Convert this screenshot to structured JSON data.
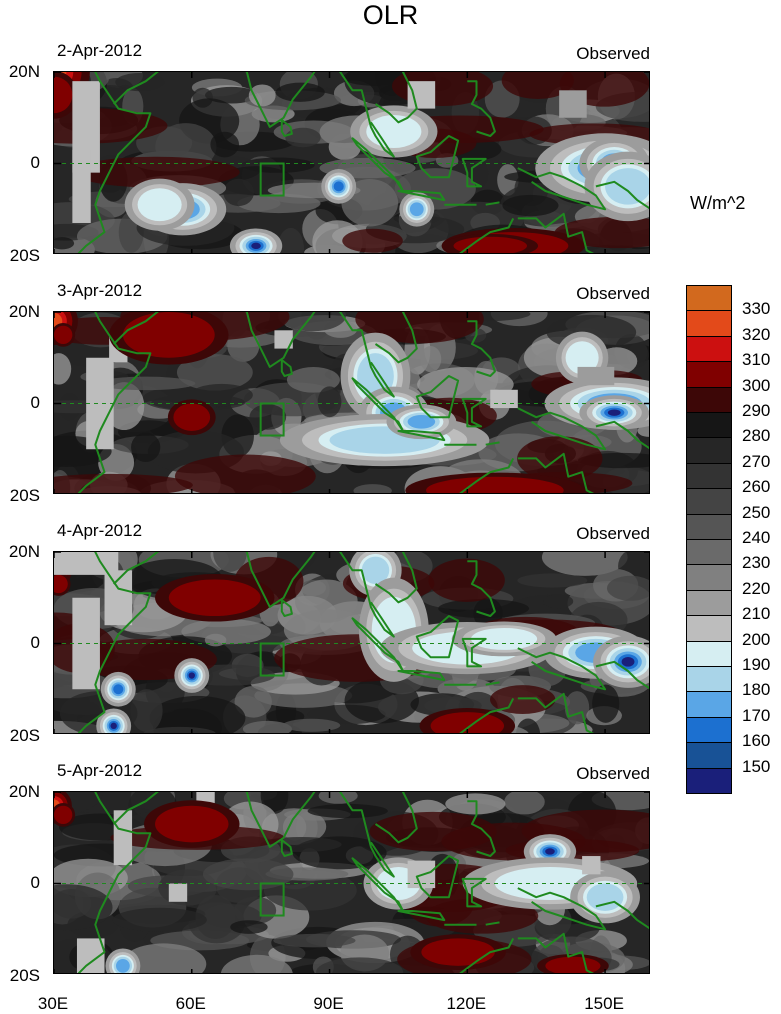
{
  "title": "OLR",
  "units": "W/m^2",
  "panels": [
    {
      "date": "2-Apr-2012",
      "label": "Observed"
    },
    {
      "date": "3-Apr-2012",
      "label": "Observed"
    },
    {
      "date": "4-Apr-2012",
      "label": "Observed"
    },
    {
      "date": "5-Apr-2012",
      "label": "Observed"
    }
  ],
  "y_tick_labels": [
    "20N",
    "0",
    "20S"
  ],
  "x_tick_labels": [
    "30E",
    "60E",
    "90E",
    "120E",
    "150E"
  ],
  "colorbar": {
    "levels": [
      "330",
      "320",
      "310",
      "300",
      "290",
      "280",
      "270",
      "260",
      "250",
      "240",
      "230",
      "220",
      "210",
      "200",
      "190",
      "180",
      "170",
      "160",
      "150"
    ],
    "colors": [
      "#d2691e",
      "#e34a1a",
      "#cc1010",
      "#800000",
      "#3d0707",
      "#161616",
      "#262626",
      "#333333",
      "#444444",
      "#555555",
      "#6a6a6a",
      "#808080",
      "#9c9c9c",
      "#bdbdbd",
      "#d6eef2",
      "#a9d4e8",
      "#5aa6e6",
      "#1c70d0",
      "#185296",
      "#1a1f7a"
    ]
  },
  "map": {
    "lon_range": [
      30,
      160
    ],
    "lat_range": [
      -20,
      20
    ],
    "projection": "cylindrical equidistant",
    "coastline_color": "#1f8a1f",
    "equator_dashed": true,
    "box_region": "75E-80E, 7S-0"
  }
}
